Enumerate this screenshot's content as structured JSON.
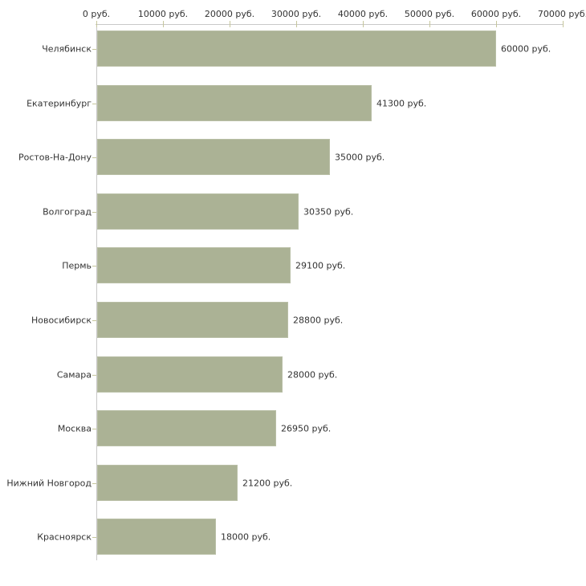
{
  "chart_data": {
    "type": "bar",
    "orientation": "horizontal",
    "title": "",
    "categories": [
      "Челябинск",
      "Екатеринбург",
      "Ростов-На-Дону",
      "Волгоград",
      "Пермь",
      "Новосибирск",
      "Самара",
      "Москва",
      "Нижний Новгород",
      "Красноярск"
    ],
    "values": [
      60000,
      41300,
      35000,
      30350,
      29100,
      28800,
      28000,
      26950,
      21200,
      18000
    ],
    "value_labels": [
      "60000 руб.",
      "41300 руб.",
      "35000 руб.",
      "30350 руб.",
      "29100 руб.",
      "28800 руб.",
      "28000 руб.",
      "26950 руб.",
      "21200 руб.",
      "18000 руб."
    ],
    "value_suffix": " руб.",
    "x_axis": {
      "position": "top",
      "range": [
        0,
        70000
      ],
      "tick_values": [
        0,
        10000,
        20000,
        30000,
        40000,
        50000,
        60000,
        70000
      ],
      "tick_labels": [
        "0 руб.",
        "10000 руб.",
        "20000 руб.",
        "30000 руб.",
        "40000 руб.",
        "50000 руб.",
        "60000 руб.",
        "70000 руб."
      ]
    },
    "grid": false,
    "legend": false
  },
  "colors": {
    "bar_fill": "#abb295",
    "bar_border": "#b9bfa6",
    "axis_line": "#c8c8c8",
    "tick_mark": "#c6c69c",
    "text": "#333333",
    "background": "#ffffff"
  }
}
